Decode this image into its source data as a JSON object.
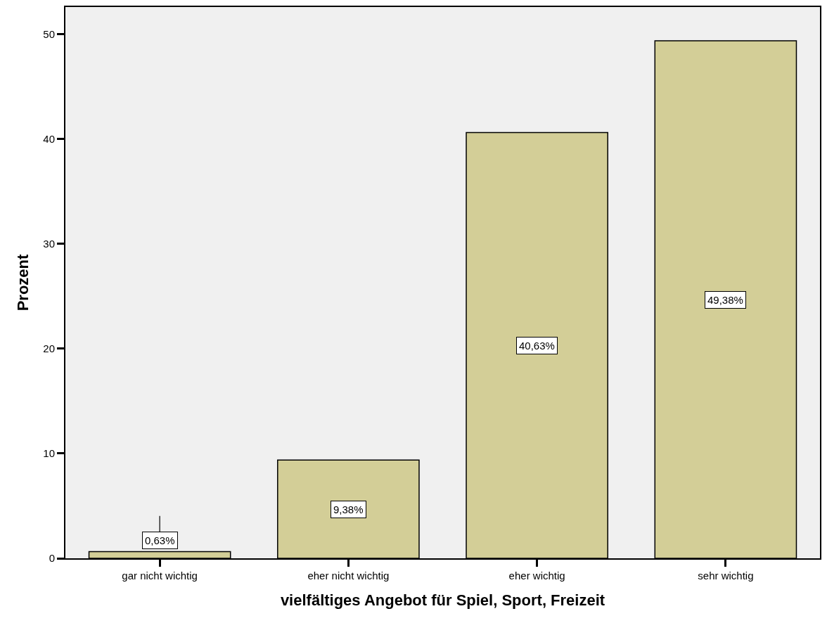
{
  "chart_data": {
    "type": "bar",
    "xlabel": "vielfältiges Angebot für Spiel, Sport, Freizeit",
    "ylabel": "Prozent",
    "categories": [
      "gar nicht wichtig",
      "eher nicht wichtig",
      "eher wichtig",
      "sehr wichtig"
    ],
    "values": [
      0.63,
      9.38,
      40.63,
      49.38
    ],
    "value_labels": [
      "0,63%",
      "9,38%",
      "40,63%",
      "49,38%"
    ],
    "color": "#d3ce97",
    "ylim": [
      0,
      52.6
    ],
    "yticks": [
      0,
      10,
      20,
      30,
      40,
      50
    ],
    "grid": false,
    "legend": false
  }
}
